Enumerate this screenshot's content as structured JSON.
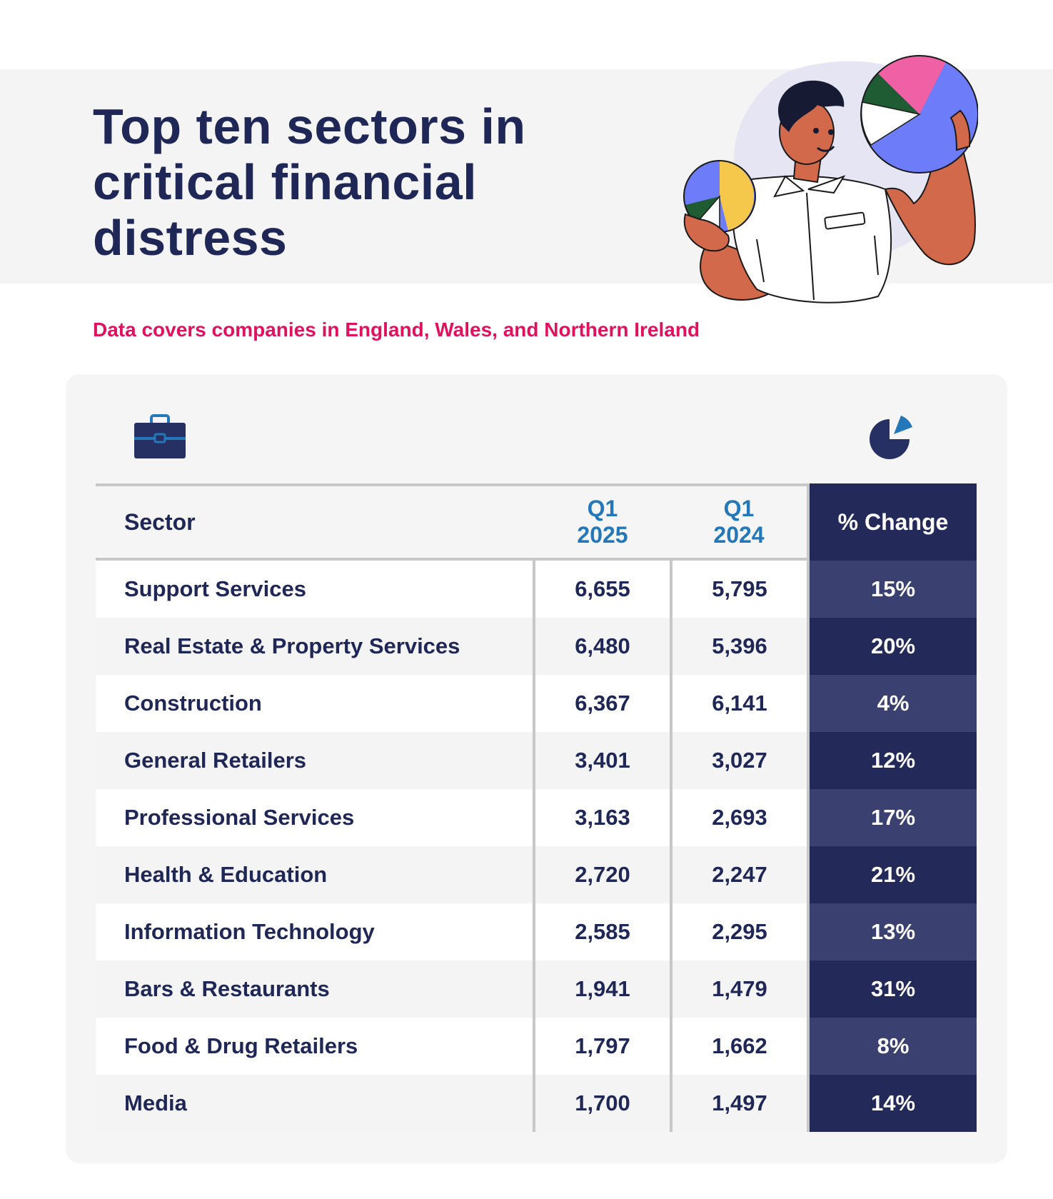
{
  "header": {
    "title": "Top ten sectors in critical financial distress",
    "subtitle": "Data covers companies in England, Wales, and Northern Ireland"
  },
  "colors": {
    "navy": "#1f2757",
    "accent_pink": "#e0115f",
    "column_blue": "#2478b9",
    "change_dark": "#232a5a",
    "change_light": "#3a4170"
  },
  "icons": [
    "briefcase-icon",
    "pie-chart-icon",
    "person-with-pie-charts-illustration"
  ],
  "chart_data": {
    "type": "table",
    "columns": [
      "Sector",
      "Q1 2025",
      "Q1 2024",
      "% Change"
    ],
    "rows": [
      {
        "sector": "Support Services",
        "q1_2025": "6,655",
        "q1_2024": "5,795",
        "change": "15%"
      },
      {
        "sector": "Real Estate & Property Services",
        "q1_2025": "6,480",
        "q1_2024": "5,396",
        "change": "20%"
      },
      {
        "sector": "Construction",
        "q1_2025": "6,367",
        "q1_2024": "6,141",
        "change": "4%"
      },
      {
        "sector": "General Retailers",
        "q1_2025": "3,401",
        "q1_2024": "3,027",
        "change": "12%"
      },
      {
        "sector": "Professional Services",
        "q1_2025": "3,163",
        "q1_2024": "2,693",
        "change": "17%"
      },
      {
        "sector": "Health & Education",
        "q1_2025": "2,720",
        "q1_2024": "2,247",
        "change": "21%"
      },
      {
        "sector": "Information Technology",
        "q1_2025": "2,585",
        "q1_2024": "2,295",
        "change": "13%"
      },
      {
        "sector": "Bars & Restaurants",
        "q1_2025": "1,941",
        "q1_2024": "1,479",
        "change": "31%"
      },
      {
        "sector": "Food & Drug Retailers",
        "q1_2025": "1,797",
        "q1_2024": "1,662",
        "change": "8%"
      },
      {
        "sector": "Media",
        "q1_2025": "1,700",
        "q1_2024": "1,497",
        "change": "14%"
      }
    ]
  }
}
